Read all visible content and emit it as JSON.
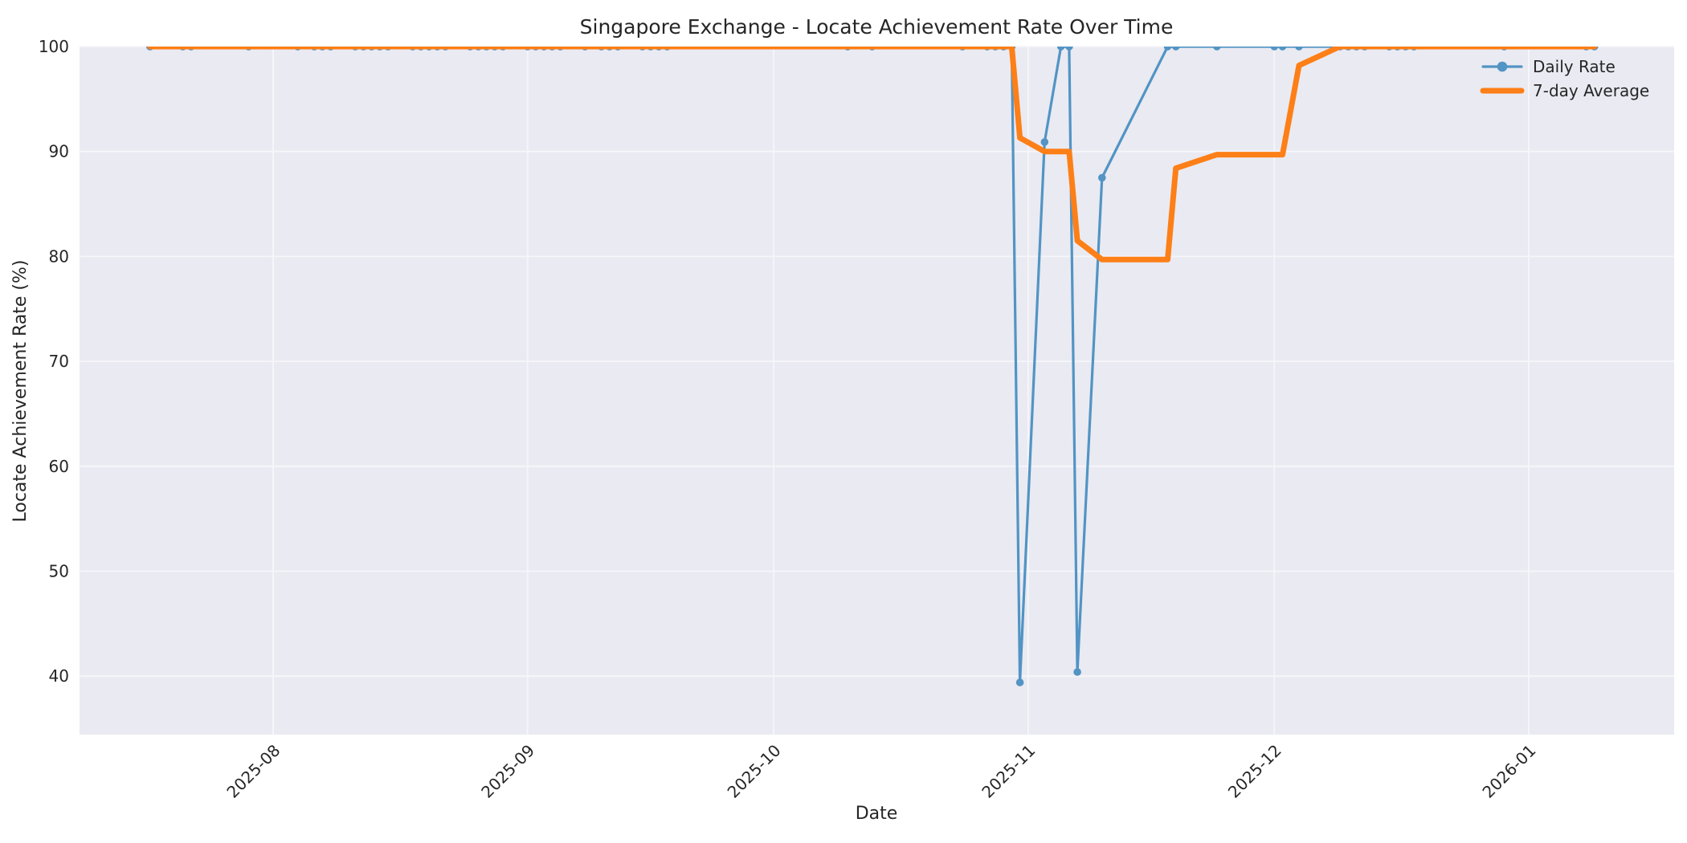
{
  "figure": {
    "background": "#ffffff",
    "plot_background": "#eaeaf2",
    "grid_color": "#f6f6fa",
    "text_color": "#262626"
  },
  "chart_data": {
    "type": "line",
    "title": "Singapore Exchange - Locate Achievement Rate Over Time",
    "xlabel": "Date",
    "ylabel": "Locate Achievement Rate (%)",
    "grid": true,
    "legend_position": "upper right",
    "x_ticks": [
      {
        "label": "2025-08",
        "date": "2025-08-01"
      },
      {
        "label": "2025-09",
        "date": "2025-09-01"
      },
      {
        "label": "2025-10",
        "date": "2025-10-01"
      },
      {
        "label": "2025-11",
        "date": "2025-11-01"
      },
      {
        "label": "2025-12",
        "date": "2025-12-01"
      },
      {
        "label": "2026-01",
        "date": "2026-01-01"
      }
    ],
    "y_ticks": [
      100,
      90,
      80,
      70,
      60,
      50,
      40
    ],
    "ylim": [
      34.5,
      100
    ],
    "xlim": [
      "2025-07-08",
      "2026-01-18"
    ],
    "series": [
      {
        "name": "Daily Rate",
        "color": "#5294c4",
        "line_width": 3.2,
        "marker": true,
        "marker_radius": 4.8,
        "points": [
          [
            "2025-07-17",
            100
          ],
          [
            "2025-07-21",
            100
          ],
          [
            "2025-07-22",
            100
          ],
          [
            "2025-07-29",
            100
          ],
          [
            "2025-08-04",
            100
          ],
          [
            "2025-08-06",
            100
          ],
          [
            "2025-08-07",
            100
          ],
          [
            "2025-08-08",
            100
          ],
          [
            "2025-08-11",
            100
          ],
          [
            "2025-08-12",
            100
          ],
          [
            "2025-08-13",
            100
          ],
          [
            "2025-08-14",
            100
          ],
          [
            "2025-08-15",
            100
          ],
          [
            "2025-08-18",
            100
          ],
          [
            "2025-08-19",
            100
          ],
          [
            "2025-08-20",
            100
          ],
          [
            "2025-08-21",
            100
          ],
          [
            "2025-08-22",
            100
          ],
          [
            "2025-08-25",
            100
          ],
          [
            "2025-08-26",
            100
          ],
          [
            "2025-08-27",
            100
          ],
          [
            "2025-08-28",
            100
          ],
          [
            "2025-08-29",
            100
          ],
          [
            "2025-09-01",
            100
          ],
          [
            "2025-09-02",
            100
          ],
          [
            "2025-09-03",
            100
          ],
          [
            "2025-09-04",
            100
          ],
          [
            "2025-09-05",
            100
          ],
          [
            "2025-09-08",
            100
          ],
          [
            "2025-09-10",
            100
          ],
          [
            "2025-09-11",
            100
          ],
          [
            "2025-09-12",
            100
          ],
          [
            "2025-09-15",
            100
          ],
          [
            "2025-09-16",
            100
          ],
          [
            "2025-09-17",
            100
          ],
          [
            "2025-09-18",
            100
          ],
          [
            "2025-10-10",
            100
          ],
          [
            "2025-10-13",
            100
          ],
          [
            "2025-10-24",
            100
          ],
          [
            "2025-10-27",
            100
          ],
          [
            "2025-10-28",
            100
          ],
          [
            "2025-10-29",
            100
          ],
          [
            "2025-10-30",
            100
          ],
          [
            "2025-10-31",
            39.4
          ],
          [
            "2025-11-03",
            90.9
          ],
          [
            "2025-11-05",
            100
          ],
          [
            "2025-11-06",
            100
          ],
          [
            "2025-11-07",
            40.4
          ],
          [
            "2025-11-10",
            87.5
          ],
          [
            "2025-11-18",
            100
          ],
          [
            "2025-11-19",
            100
          ],
          [
            "2025-11-24",
            100
          ],
          [
            "2025-12-01",
            100
          ],
          [
            "2025-12-02",
            100
          ],
          [
            "2025-12-04",
            100
          ],
          [
            "2025-12-09",
            100
          ],
          [
            "2025-12-10",
            100
          ],
          [
            "2025-12-11",
            100
          ],
          [
            "2025-12-12",
            100
          ],
          [
            "2025-12-15",
            100
          ],
          [
            "2025-12-16",
            100
          ],
          [
            "2025-12-17",
            100
          ],
          [
            "2025-12-18",
            100
          ],
          [
            "2025-12-29",
            100
          ],
          [
            "2026-01-08",
            100
          ],
          [
            "2026-01-09",
            100
          ]
        ]
      },
      {
        "name": "7-day Average",
        "color": "#fd7f17",
        "line_width": 7,
        "marker": false,
        "marker_radius": 0,
        "points": [
          [
            "2025-07-17",
            100
          ],
          [
            "2025-10-30",
            100
          ],
          [
            "2025-10-31",
            91.3
          ],
          [
            "2025-11-03",
            90.0
          ],
          [
            "2025-11-06",
            90.0
          ],
          [
            "2025-11-07",
            81.5
          ],
          [
            "2025-11-10",
            79.7
          ],
          [
            "2025-11-18",
            79.7
          ],
          [
            "2025-11-19",
            88.4
          ],
          [
            "2025-11-24",
            89.7
          ],
          [
            "2025-12-02",
            89.7
          ],
          [
            "2025-12-04",
            98.2
          ],
          [
            "2025-12-09",
            100
          ],
          [
            "2026-01-09",
            100
          ]
        ]
      }
    ]
  }
}
